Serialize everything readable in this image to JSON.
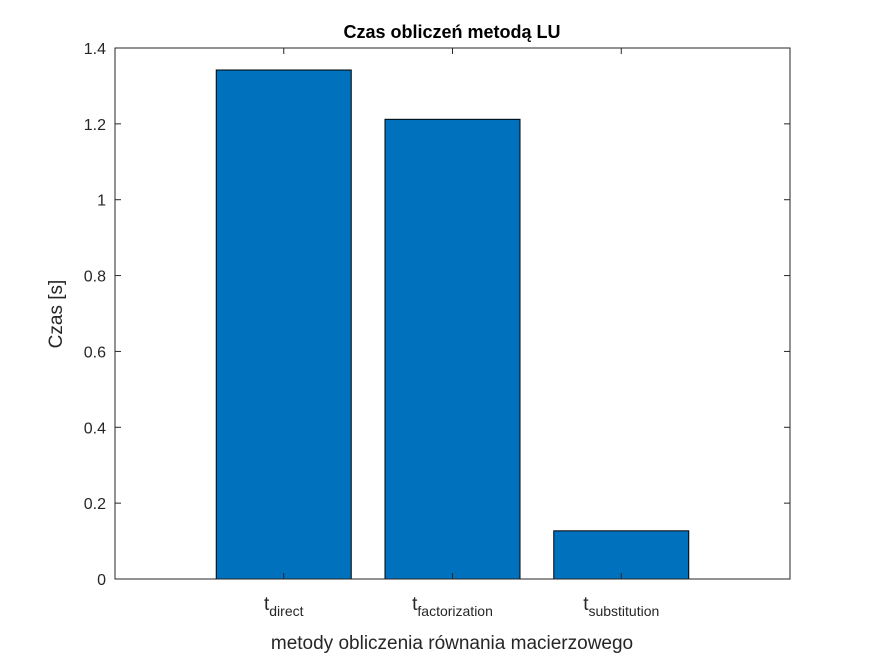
{
  "chart_data": {
    "type": "bar",
    "title": "Czas obliczeń metodą LU",
    "xlabel": "metody obliczenia równania macierzowego",
    "ylabel": "Czas [s]",
    "categories": [
      {
        "main": "t",
        "sub": "direct"
      },
      {
        "main": "t",
        "sub": "factorization"
      },
      {
        "main": "t",
        "sub": "substitution"
      }
    ],
    "values": [
      1.342,
      1.212,
      0.127
    ],
    "ylim": [
      0,
      1.4
    ],
    "yticks": [
      0,
      0.2,
      0.4,
      0.6,
      0.8,
      1,
      1.2,
      1.4
    ],
    "ytick_labels": [
      "0",
      "0.2",
      "0.4",
      "0.6",
      "0.8",
      "1",
      "1.2",
      "1.4"
    ],
    "bar_color": "#0072BD",
    "grid": false,
    "legend": "none"
  }
}
